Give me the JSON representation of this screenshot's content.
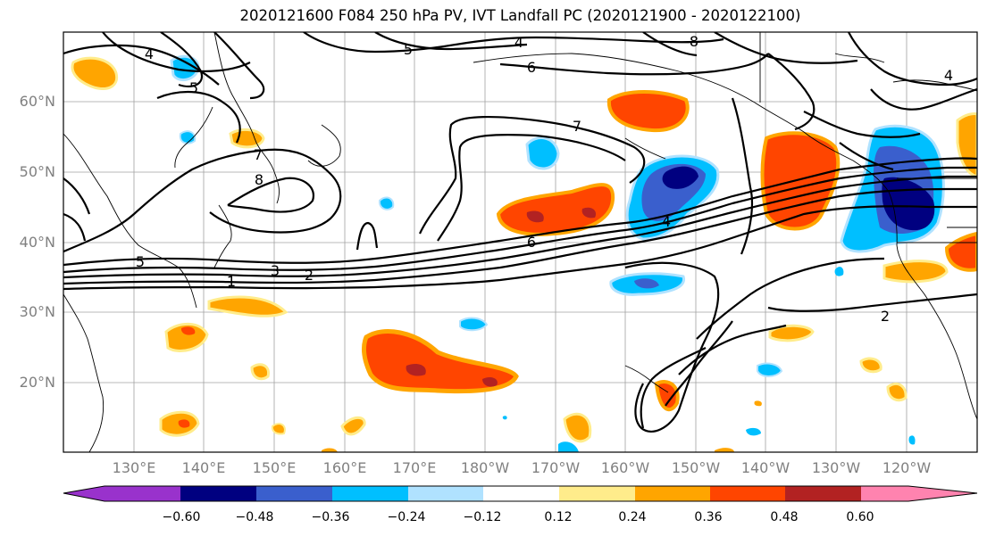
{
  "title": "2020121600 F084 250 hPa PV, IVT Landfall PC (2020121900 - 2020122100)",
  "lat_labels": [
    "60°N",
    "50°N",
    "40°N",
    "30°N",
    "20°N"
  ],
  "lon_labels": [
    "130°E",
    "140°E",
    "150°E",
    "160°E",
    "170°E",
    "180°W",
    "170°W",
    "160°W",
    "150°W",
    "140°W",
    "130°W",
    "120°W"
  ],
  "contour_labels": [
    "4",
    "8",
    "5",
    "6",
    "4",
    "7",
    "7",
    "8",
    "5",
    "6",
    "4",
    "5",
    "3",
    "2",
    "1",
    "2",
    "4"
  ],
  "colorbar": {
    "ticks": [
      "−0.60",
      "−0.48",
      "−0.36",
      "−0.24",
      "−0.12",
      "0.12",
      "0.24",
      "0.36",
      "0.48",
      "0.60"
    ],
    "colors": [
      "#9932cc",
      "#000080",
      "#3a5fcd",
      "#00bfff",
      "#b0e2ff",
      "#ffffff",
      "#ffec8b",
      "#ffa500",
      "#ff4500",
      "#b22222",
      "#ff83af"
    ]
  },
  "fill_colors": {
    "neg_light": "#b0e2ff",
    "neg_mid": "#00bfff",
    "neg_strong": "#3a5fcd",
    "neg_max": "#000080",
    "pos_light": "#ffec8b",
    "pos_mid": "#ffa500",
    "pos_strong": "#ff4500",
    "pos_max": "#b22222"
  }
}
